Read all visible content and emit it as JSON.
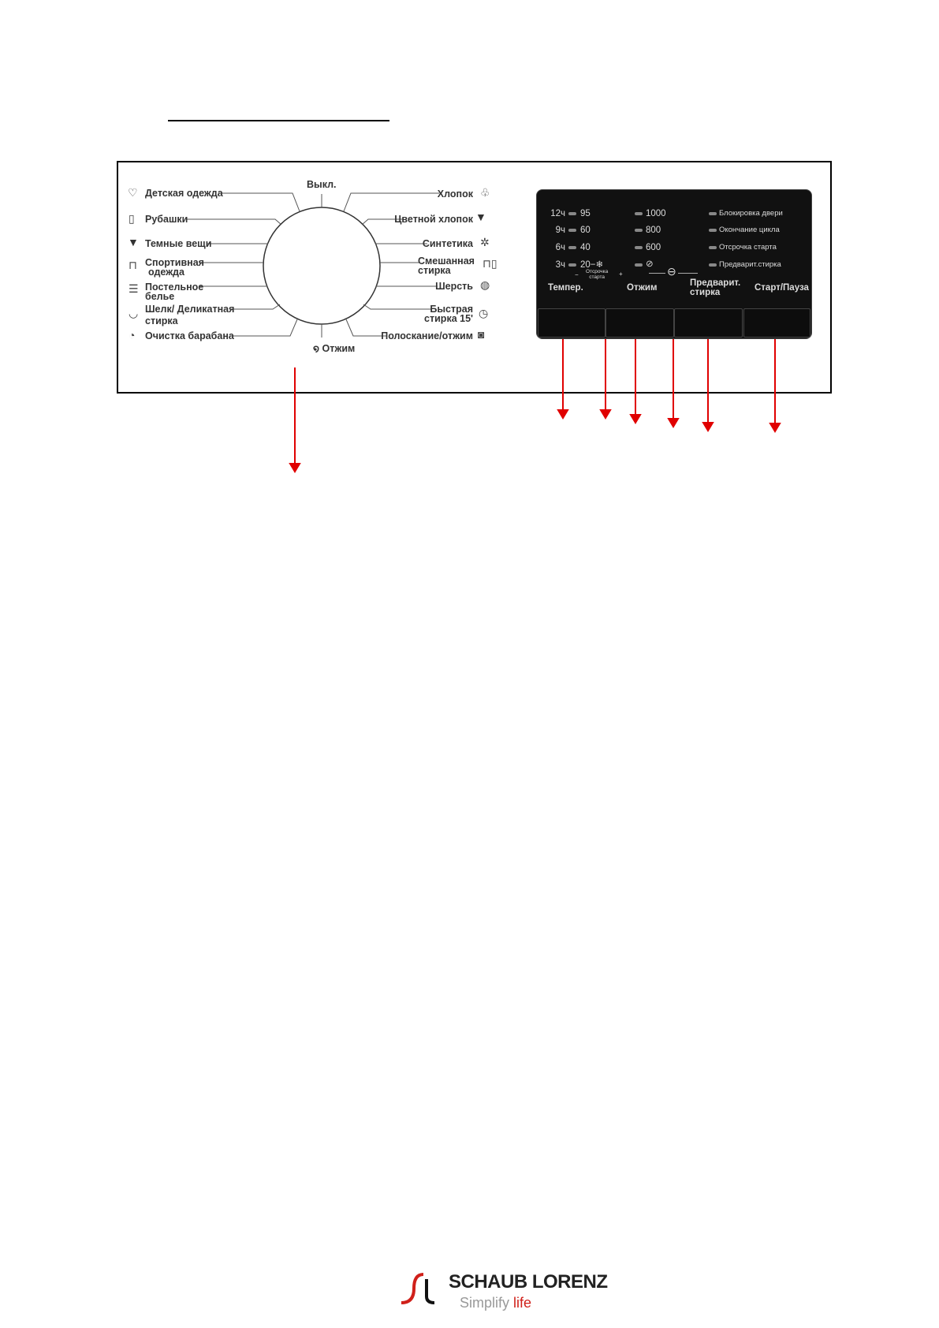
{
  "dial": {
    "off": "Выкл.",
    "spin": "Отжим",
    "left_programs": [
      {
        "label": "Детская одежда",
        "icon": "baby-clothes-icon"
      },
      {
        "label": "Рубашки",
        "icon": "shirt-icon"
      },
      {
        "label": "Темные вещи",
        "icon": "dark-tshirt-icon"
      },
      {
        "label": "Спортивная",
        "label2": "одежда",
        "icon": "sportswear-icon"
      },
      {
        "label": "Постельное",
        "label2": "белье",
        "icon": "bedding-icon"
      },
      {
        "label": "Шелк/ Деликатная",
        "label2": "стирка",
        "icon": "silk-icon"
      },
      {
        "label": "Очистка барабана",
        "icon": "drum-clean-icon"
      }
    ],
    "right_programs": [
      {
        "label": "Хлопок",
        "icon": "cotton-icon"
      },
      {
        "label": "Цветной хлопок",
        "icon": "color-cotton-icon"
      },
      {
        "label": "Синтетика",
        "icon": "synthetics-icon"
      },
      {
        "label": "Смешанная",
        "label2": "стирка",
        "icon": "mixed-icon"
      },
      {
        "label": "Шерсть",
        "icon": "wool-icon"
      },
      {
        "label": "Быстрая",
        "label2": "стирка 15'",
        "icon": "quick-wash-icon"
      },
      {
        "label": "Полоскание/отжим",
        "icon": "rinse-spin-icon"
      }
    ]
  },
  "panel": {
    "delay_hours": [
      "12ч",
      "9ч",
      "6ч",
      "3ч"
    ],
    "temperatures": [
      "95",
      "60",
      "40",
      "20−❄"
    ],
    "spin_speeds": [
      "1000",
      "800",
      "600"
    ],
    "no_spin_icon": "no-spin-icon",
    "indicators": [
      "Блокировка двери",
      "Окончание цикла",
      "Отсрочка старта",
      "Предварит.стирка"
    ],
    "delay_label_line1": "Отсрочка",
    "delay_label_line2": "старта",
    "minus": "−",
    "plus": "+",
    "buttons": {
      "temp": "Темпер.",
      "spin": "Отжим",
      "prewash_line1": "Предварит.",
      "prewash_line2": "стирка",
      "start": "Старт/Пауза"
    }
  },
  "logo": {
    "brand_first": "SCHAUB",
    "brand_second": "LORENZ",
    "tagline": "Simplify",
    "tagline_accent": "life"
  },
  "colors": {
    "arrow": "#e00000",
    "panel": "#111111",
    "logo_red": "#d0201a"
  }
}
